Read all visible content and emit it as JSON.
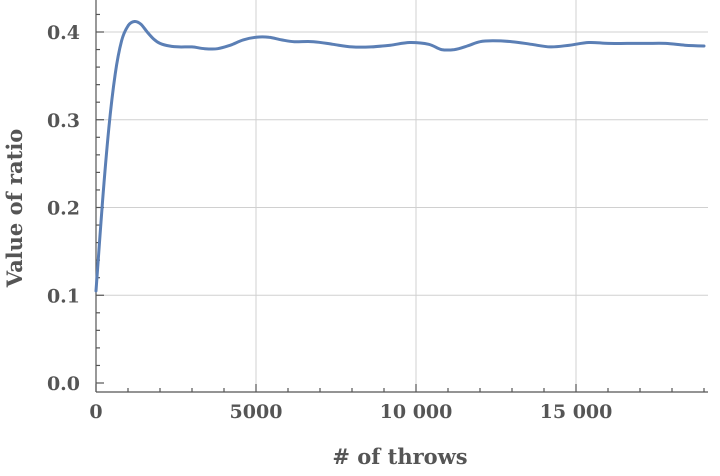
{
  "chart_data": {
    "type": "line",
    "xlabel": "# of throws",
    "ylabel": "Value of ratio",
    "xlim": [
      0,
      19000
    ],
    "ylim": [
      0.0,
      0.43
    ],
    "x_ticks": [
      0,
      5000,
      10000,
      15000
    ],
    "x_tick_labels": [
      "0",
      "5000",
      "10 000",
      "15 000"
    ],
    "y_ticks": [
      0.0,
      0.1,
      0.2,
      0.3,
      0.4
    ],
    "y_tick_labels": [
      "0.0",
      "0.1",
      "0.2",
      "0.3",
      "0.4"
    ],
    "grid": true,
    "colors": {
      "line": "#5b7fb5",
      "axis": "#555555",
      "grid": "#d0d0d0"
    },
    "series": [
      {
        "x": [
          0,
          200,
          400,
          600,
          800,
          1000,
          1200,
          1400,
          1600,
          1800,
          2000,
          2300,
          2600,
          3000,
          3400,
          3800,
          4200,
          4600,
          5000,
          5400,
          5800,
          6200,
          6800,
          7400,
          8000,
          8600,
          9200,
          9800,
          10400,
          10800,
          11200,
          11600,
          12000,
          12400,
          13000,
          13600,
          14200,
          14800,
          15400,
          16000,
          16600,
          17200,
          17800,
          18400,
          19000
        ],
        "y": [
          0.105,
          0.205,
          0.29,
          0.352,
          0.39,
          0.407,
          0.412,
          0.409,
          0.4,
          0.392,
          0.387,
          0.384,
          0.383,
          0.383,
          0.381,
          0.381,
          0.385,
          0.391,
          0.394,
          0.394,
          0.391,
          0.389,
          0.389,
          0.386,
          0.383,
          0.383,
          0.385,
          0.388,
          0.386,
          0.38,
          0.38,
          0.384,
          0.389,
          0.39,
          0.389,
          0.386,
          0.383,
          0.385,
          0.388,
          0.387,
          0.387,
          0.387,
          0.387,
          0.385,
          0.384
        ]
      }
    ]
  }
}
